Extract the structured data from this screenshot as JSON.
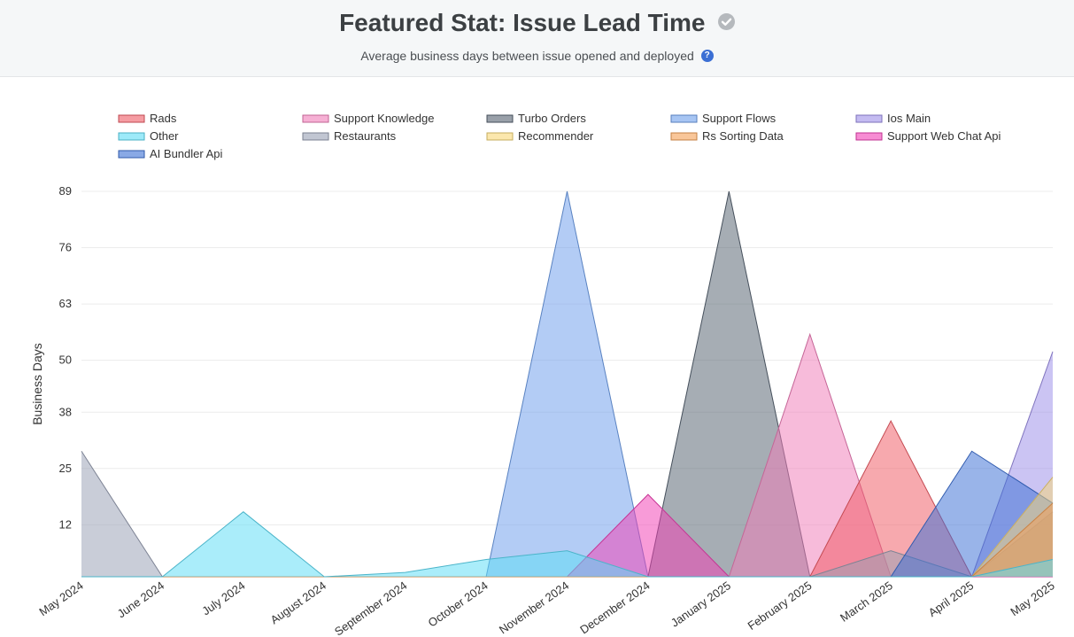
{
  "header": {
    "title": "Featured Stat: Issue Lead Time",
    "subtitle": "Average business days between issue opened and deployed",
    "title_icon": "check-circle-icon",
    "help_icon": "question-circle-icon",
    "help_glyph": "?"
  },
  "chart_data": {
    "type": "area",
    "title": "",
    "xlabel": "",
    "ylabel": "Business Days",
    "categories": [
      "May 2024",
      "June 2024",
      "July 2024",
      "August 2024",
      "September 2024",
      "October 2024",
      "November 2024",
      "December 2024",
      "January 2025",
      "February 2025",
      "March 2025",
      "April 2025",
      "May 2025"
    ],
    "y_ticks": [
      12,
      25,
      38,
      50,
      63,
      76,
      89
    ],
    "ylim": [
      0,
      89
    ],
    "grid": true,
    "legend_position": "top",
    "series": [
      {
        "name": "Rads",
        "color": "#ef5a64",
        "values": [
          0,
          0,
          0,
          0,
          0,
          0,
          0,
          0,
          0,
          0,
          36,
          0,
          0
        ]
      },
      {
        "name": "Support Knowledge",
        "color": "#f07cb8",
        "values": [
          0,
          0,
          0,
          0,
          0,
          0,
          0,
          0,
          0,
          56,
          0,
          0,
          0
        ]
      },
      {
        "name": "Turbo Orders",
        "color": "#556170",
        "values": [
          0,
          0,
          0,
          0,
          0,
          0,
          0,
          0,
          89,
          0,
          0,
          0,
          15
        ]
      },
      {
        "name": "Support Flows",
        "color": "#6d9eeb",
        "values": [
          0,
          0,
          0,
          0,
          0,
          0,
          89,
          0,
          0,
          0,
          0,
          0,
          0
        ]
      },
      {
        "name": "Ios Main",
        "color": "#9c8ee8",
        "values": [
          0,
          0,
          0,
          0,
          0,
          0,
          0,
          0,
          0,
          0,
          0,
          0,
          52
        ]
      },
      {
        "name": "Other",
        "color": "#5cdcf5",
        "values": [
          0,
          0,
          15,
          0,
          1,
          4,
          6,
          0,
          0,
          0,
          0,
          0,
          4
        ]
      },
      {
        "name": "Restaurants",
        "color": "#98a0b4",
        "values": [
          29,
          0,
          0,
          0,
          0,
          0,
          0,
          0,
          0,
          0,
          6,
          0,
          0
        ]
      },
      {
        "name": "Recommender",
        "color": "#f8d776",
        "values": [
          0,
          0,
          0,
          0,
          0,
          0,
          0,
          0,
          0,
          0,
          0,
          0,
          23
        ]
      },
      {
        "name": "Rs Sorting Data",
        "color": "#f5a055",
        "values": [
          0,
          0,
          0,
          0,
          0,
          0,
          0,
          0,
          0,
          0,
          0,
          0,
          17
        ]
      },
      {
        "name": "Support Web Chat Api",
        "color": "#f13fb5",
        "values": [
          0,
          0,
          0,
          0,
          0,
          0,
          0,
          19,
          0,
          0,
          0,
          0,
          0
        ]
      },
      {
        "name": "AI Bundler Api",
        "color": "#3b6fd4",
        "values": [
          0,
          0,
          0,
          0,
          0,
          0,
          0,
          0,
          0,
          0,
          0,
          29,
          17
        ]
      }
    ]
  }
}
